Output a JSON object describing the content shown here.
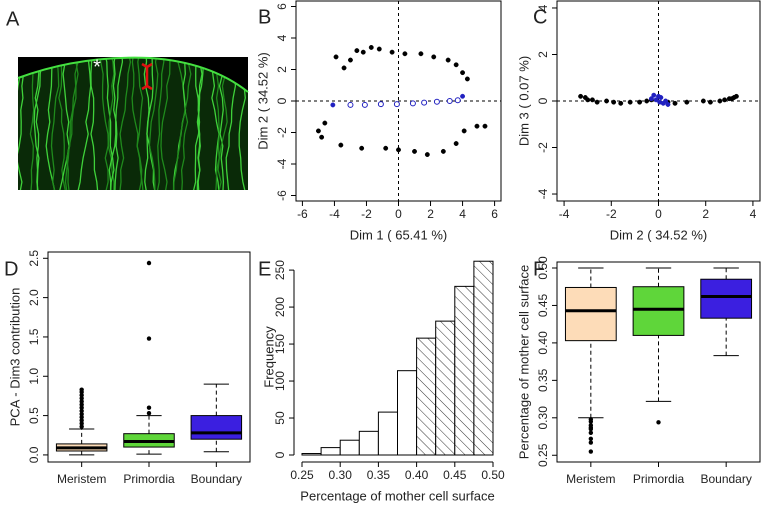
{
  "chart_data": [
    {
      "type": "image",
      "panel": "A",
      "annotation": "*"
    },
    {
      "type": "scatter",
      "panel": "B",
      "xlabel": "Dim 1 ( 65.41 %)",
      "ylabel": "Dim 2 ( 34.52 %)",
      "xlim": [
        -6.4,
        6.4
      ],
      "xticks": [
        -6,
        -4,
        -2,
        0,
        2,
        4,
        6
      ],
      "ylim": [
        -6.35,
        6.35
      ],
      "yticks": [
        -6,
        -4,
        -2,
        0,
        2,
        4,
        6
      ],
      "zero_lines": true,
      "series": [
        {
          "color": "#000000",
          "marker": "filled",
          "x": [
            -3.9,
            -3.4,
            -3.0,
            -2.6,
            -2.2,
            -1.7,
            -1.2,
            -0.4,
            0.4,
            1.4,
            2.2,
            3.1,
            3.6,
            4.0,
            4.3,
            -5.0,
            -4.8,
            -3.6,
            -2.3,
            -0.8,
            0.0,
            1.0,
            1.8,
            2.8,
            3.6,
            4.1,
            4.9,
            5.4,
            -4.6
          ],
          "values": [
            2.8,
            2.1,
            2.6,
            3.2,
            3.1,
            3.4,
            3.3,
            3.1,
            3.0,
            3.0,
            2.8,
            2.6,
            2.3,
            1.8,
            1.4,
            -1.9,
            -2.3,
            -2.8,
            -3.0,
            -3.0,
            -3.1,
            -3.2,
            -3.4,
            -3.2,
            -2.7,
            -1.9,
            -1.6,
            -1.6,
            -1.4
          ]
        },
        {
          "color": "#2020c0",
          "marker": "open",
          "x": [
            -3.0,
            -2.1,
            -1.1,
            -0.1,
            0.9,
            1.6,
            2.4,
            3.2,
            3.7
          ],
          "values": [
            -0.25,
            -0.25,
            -0.2,
            -0.2,
            -0.15,
            -0.1,
            -0.05,
            0.0,
            0.05
          ]
        },
        {
          "color": "#2020c0",
          "marker": "filled",
          "x": [
            -4.1,
            4.0
          ],
          "values": [
            -0.25,
            0.3
          ]
        }
      ]
    },
    {
      "type": "scatter",
      "panel": "C",
      "xlabel": "Dim 2 ( 34.52 %)",
      "ylabel": "Dim 3 ( 0.07 %)",
      "xlim": [
        -4.3,
        4.3
      ],
      "xticks": [
        -4,
        -2,
        0,
        2,
        4
      ],
      "ylim": [
        -4.3,
        4.3
      ],
      "yticks": [
        -4,
        -2,
        0,
        2,
        4
      ],
      "zero_lines": true,
      "series": [
        {
          "color": "#000000",
          "marker": "filled",
          "x": [
            -3.3,
            -3.1,
            -3.0,
            -2.8,
            -2.6,
            -2.2,
            -1.9,
            -1.6,
            -1.2,
            -0.8,
            -0.5,
            -0.3,
            0.4,
            0.7,
            1.2,
            1.9,
            2.2,
            2.6,
            2.8,
            3.0,
            3.1,
            3.2,
            3.3
          ],
          "values": [
            0.2,
            0.15,
            0.05,
            0.05,
            -0.05,
            0.0,
            -0.05,
            -0.1,
            -0.05,
            -0.05,
            0.0,
            0.05,
            -0.05,
            -0.1,
            -0.05,
            0.0,
            -0.05,
            0.0,
            0.05,
            0.1,
            0.1,
            0.15,
            0.2
          ]
        },
        {
          "color": "#2020c0",
          "marker": "filled",
          "x": [
            -0.3,
            -0.2,
            -0.1,
            0.0,
            0.05,
            0.1,
            0.2,
            0.3,
            0.4
          ],
          "values": [
            0.1,
            0.25,
            0.05,
            0.2,
            -0.05,
            0.15,
            -0.1,
            0.0,
            -0.15
          ]
        }
      ]
    },
    {
      "type": "boxplot",
      "panel": "D",
      "ylabel": "PCA - Dim3 contribution",
      "ylim": [
        -0.09,
        2.58
      ],
      "yticks": [
        {
          "value": 0,
          "label": "0.0"
        },
        0.5,
        {
          "value": 1,
          "label": "1.0"
        },
        1.5,
        {
          "value": 2,
          "label": "2.0"
        },
        2.5
      ],
      "categories": [
        "Meristem",
        "Primordia",
        "Boundary"
      ],
      "colors": [
        "#fddcb8",
        "#5fd63a",
        "#3b1fe0"
      ],
      "boxes": [
        {
          "low": 0.0,
          "q1": 0.05,
          "median": 0.09,
          "q3": 0.14,
          "high": 0.33,
          "outliers": [
            0.36,
            0.4,
            0.44,
            0.48,
            0.52,
            0.56,
            0.6,
            0.64,
            0.68,
            0.72,
            0.76,
            0.8,
            0.83
          ]
        },
        {
          "low": 0.01,
          "q1": 0.1,
          "median": 0.17,
          "q3": 0.27,
          "high": 0.5,
          "outliers": [
            0.53,
            0.6,
            1.48,
            2.44
          ]
        },
        {
          "low": 0.04,
          "q1": 0.2,
          "median": 0.28,
          "q3": 0.5,
          "high": 0.9,
          "outliers": []
        }
      ]
    },
    {
      "type": "histogram",
      "panel": "E",
      "xlabel": "Percentage of mother cell surface",
      "ylabel": "Frequency",
      "xlim": [
        0.25,
        0.5
      ],
      "xticks": [
        0.25,
        {
          "value": 0.3,
          "label": "0.30"
        },
        0.35,
        {
          "value": 0.4,
          "label": "0.40"
        },
        0.45,
        {
          "value": 0.5,
          "label": "0.50"
        }
      ],
      "ylim": [
        0,
        265
      ],
      "yticks": [
        0,
        50,
        100,
        150,
        200,
        250
      ],
      "bins": [
        0.25,
        0.275,
        0.3,
        0.325,
        0.35,
        0.375,
        0.4,
        0.425,
        0.45,
        0.475,
        0.5
      ],
      "values": [
        2,
        10,
        20,
        32,
        58,
        114,
        158,
        181,
        228,
        262
      ],
      "hatch": [
        false,
        false,
        false,
        false,
        false,
        false,
        true,
        true,
        true,
        true
      ]
    },
    {
      "type": "boxplot",
      "panel": "F",
      "ylabel": "Percentage of mother cell surface",
      "ylim": [
        0.241,
        0.508
      ],
      "yticks": [
        0.25,
        {
          "value": 0.3,
          "label": "0.30"
        },
        0.35,
        {
          "value": 0.4,
          "label": "0.40"
        },
        0.45,
        {
          "value": 0.5,
          "label": "0.50"
        }
      ],
      "categories": [
        "Meristem",
        "Primordia",
        "Boundary"
      ],
      "colors": [
        "#fddcb8",
        "#5fd63a",
        "#3b1fe0"
      ],
      "boxes": [
        {
          "low": 0.3,
          "q1": 0.403,
          "median": 0.443,
          "q3": 0.474,
          "high": 0.5,
          "outliers": [
            0.298,
            0.295,
            0.29,
            0.287,
            0.285,
            0.28,
            0.272,
            0.267,
            0.255
          ]
        },
        {
          "low": 0.322,
          "q1": 0.41,
          "median": 0.445,
          "q3": 0.475,
          "high": 0.5,
          "outliers": [
            0.294
          ]
        },
        {
          "low": 0.383,
          "q1": 0.433,
          "median": 0.462,
          "q3": 0.485,
          "high": 0.5,
          "outliers": []
        }
      ]
    }
  ]
}
